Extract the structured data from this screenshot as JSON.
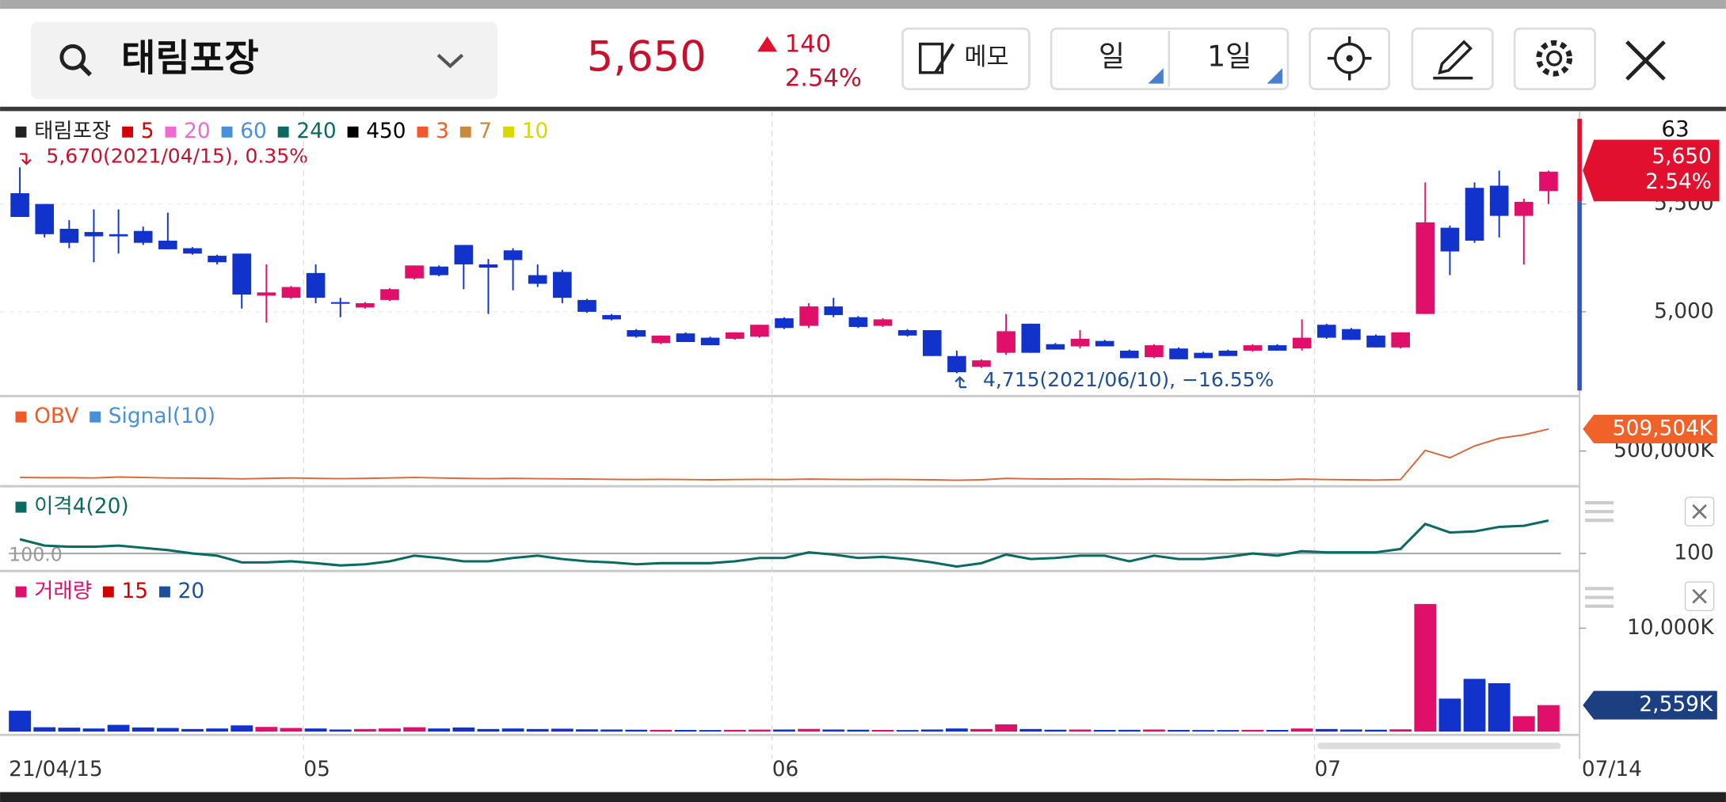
{
  "header": {
    "search": "태림포장",
    "price": "5,650",
    "change": "140",
    "change_rate": "2.54%",
    "memo": "메모",
    "period": "일",
    "interval": "1일"
  },
  "chart_data": [
    {
      "type": "candlestick",
      "legend": [
        {
          "name": "태림포장",
          "color": "#222222"
        },
        {
          "name": "5",
          "color": "#d40000"
        },
        {
          "name": "20",
          "color": "#f06ad2"
        },
        {
          "name": "60",
          "color": "#4a90d9"
        },
        {
          "name": "240",
          "color": "#0b6b63"
        },
        {
          "name": "450",
          "color": "#000000"
        },
        {
          "name": "3",
          "color": "#f05a28"
        },
        {
          "name": "7",
          "color": "#c98a3a"
        },
        {
          "name": "10",
          "color": "#d8d800"
        }
      ],
      "categories": [
        "21/04/15",
        null,
        null,
        null,
        null,
        null,
        null,
        null,
        null,
        null,
        null,
        null,
        "05",
        null,
        null,
        null,
        null,
        null,
        null,
        null,
        null,
        null,
        null,
        null,
        null,
        null,
        null,
        null,
        null,
        null,
        null,
        "06",
        null,
        null,
        null,
        null,
        null,
        null,
        null,
        null,
        null,
        null,
        null,
        null,
        null,
        null,
        null,
        null,
        null,
        null,
        null,
        null,
        null,
        "07",
        null,
        null,
        null,
        null,
        null,
        null,
        null,
        null,
        null
      ],
      "last_date": "07/14",
      "open": [
        5550,
        5500,
        5385,
        5370,
        5360,
        5375,
        5330,
        5295,
        5260,
        5270,
        5075,
        5065,
        5180,
        5045,
        5020,
        5055,
        5155,
        5210,
        5310,
        5220,
        5285,
        5170,
        5185,
        5055,
        4985,
        4915,
        4855,
        4900,
        4880,
        4875,
        4885,
        4970,
        4935,
        5025,
        4975,
        4935,
        4915,
        4915,
        4795,
        4745,
        4810,
        4945,
        4850,
        4840,
        4865,
        4820,
        4790,
        4830,
        4810,
        4820,
        4820,
        4845,
        4830,
        4940,
        4920,
        4890,
        4835,
        4990,
        5390,
        5575,
        5585,
        5445,
        5560
      ],
      "high": [
        5670,
        5500,
        5425,
        5475,
        5475,
        5395,
        5460,
        5300,
        5265,
        5270,
        5220,
        5120,
        5220,
        5065,
        5045,
        5110,
        5215,
        5215,
        5310,
        5245,
        5295,
        5220,
        5195,
        5060,
        4990,
        4920,
        4890,
        4905,
        4885,
        4905,
        4940,
        4975,
        5040,
        5065,
        4980,
        4970,
        4920,
        4915,
        4820,
        4780,
        4990,
        4945,
        4855,
        4915,
        4870,
        4825,
        4850,
        4835,
        4815,
        4825,
        4850,
        4850,
        4965,
        4945,
        4925,
        4895,
        4905,
        5600,
        5400,
        5600,
        5655,
        5525,
        5655
      ],
      "low": [
        5440,
        5345,
        5295,
        5230,
        5270,
        5310,
        5290,
        5265,
        5220,
        5015,
        4950,
        5060,
        5040,
        4975,
        5015,
        5050,
        5150,
        5165,
        5105,
        4990,
        5100,
        5115,
        5040,
        4995,
        4960,
        4880,
        4850,
        4860,
        4845,
        4870,
        4880,
        4920,
        4925,
        4975,
        4925,
        4930,
        4885,
        4795,
        4715,
        4740,
        4800,
        4810,
        4825,
        4830,
        4840,
        4785,
        4785,
        4780,
        4785,
        4795,
        4815,
        4820,
        4820,
        4875,
        4870,
        4835,
        4830,
        4990,
        5170,
        5320,
        5345,
        5220,
        5500
      ],
      "close": [
        5440,
        5360,
        5320,
        5350,
        5350,
        5320,
        5290,
        5270,
        5230,
        5080,
        5090,
        5115,
        5065,
        5040,
        5040,
        5105,
        5215,
        5170,
        5220,
        5205,
        5240,
        5130,
        5065,
        5000,
        4965,
        4885,
        4890,
        4860,
        4845,
        4905,
        4940,
        4925,
        5025,
        4985,
        4930,
        4965,
        4890,
        4795,
        4720,
        4775,
        4910,
        4810,
        4825,
        4875,
        4840,
        4785,
        4845,
        4780,
        4785,
        4795,
        4845,
        4820,
        4880,
        4880,
        4870,
        4835,
        4905,
        5415,
        5280,
        5330,
        5445,
        5510,
        5650
      ],
      "up_color": "#e0106a",
      "down_color": "#1133cc",
      "ylim": [
        4635,
        5895
      ],
      "yticks": [
        {
          "value": 5000,
          "label": "5,000"
        },
        {
          "value": 5500,
          "label": "5,500"
        }
      ],
      "annotations": [
        "5,670(2021/04/15), 0.35%",
        "4,715(2021/06/10), −16.55%"
      ],
      "count": "63",
      "badge_price": "5,650",
      "badge_rate": "2.54%"
    },
    {
      "type": "line",
      "legend": [
        {
          "name": "OBV",
          "color": "#f05a28"
        },
        {
          "name": "Signal(10)",
          "color": "#4a90d9"
        }
      ],
      "series": [
        {
          "name": "OBV",
          "color": "#d9673a",
          "values": [
            488600,
            488500,
            488500,
            488400,
            488800,
            488600,
            488400,
            488300,
            488200,
            488000,
            488200,
            488400,
            488200,
            488100,
            488200,
            488400,
            488600,
            488400,
            488200,
            488100,
            488200,
            488100,
            488000,
            487900,
            487800,
            487700,
            487800,
            487700,
            487600,
            487700,
            487800,
            487700,
            487900,
            487800,
            487700,
            487800,
            487700,
            487600,
            487400,
            487600,
            488200,
            488000,
            487900,
            488000,
            487900,
            487800,
            487900,
            487800,
            487700,
            487600,
            487700,
            487600,
            487900,
            487700,
            487600,
            487500,
            487700,
            500300,
            497100,
            502200,
            505500,
            507000,
            509504
          ]
        }
      ],
      "ylim": [
        485750,
        521375
      ],
      "yticks": [
        {
          "value": 500000,
          "label": "500,000K"
        }
      ],
      "badge": "509,504K",
      "badge_color": "#f0622a"
    },
    {
      "type": "line",
      "legend": [
        {
          "name": "이격4(20)",
          "color": "#0b6b63"
        }
      ],
      "series": [
        {
          "name": "이격4(20)",
          "color": "#0b6b63",
          "values": [
            103.8,
            102.1,
            101.8,
            101.8,
            102.1,
            101.5,
            100.9,
            100.0,
            99.4,
            97.6,
            97.6,
            97.9,
            97.4,
            96.8,
            97.1,
            97.9,
            99.4,
            98.8,
            97.9,
            97.9,
            98.8,
            99.4,
            98.5,
            97.9,
            97.6,
            97.1,
            97.4,
            97.4,
            97.4,
            97.9,
            98.8,
            98.8,
            100.3,
            99.7,
            98.8,
            99.1,
            98.5,
            97.6,
            96.5,
            97.4,
            99.7,
            98.5,
            98.8,
            99.4,
            99.4,
            97.9,
            99.4,
            98.5,
            98.5,
            99.1,
            100.0,
            99.4,
            100.6,
            100.3,
            100.3,
            100.3,
            101.2,
            107.9,
            105.6,
            105.9,
            107.1,
            107.4,
            108.8
          ]
        }
      ],
      "ylim": [
        95.9,
        116.5
      ],
      "yticks": [
        100
      ],
      "baseline_label": "100.0"
    },
    {
      "type": "bar",
      "legend": [
        {
          "name": "거래량",
          "color": "#e0106a"
        },
        {
          "name": "15",
          "color": "#d40000"
        },
        {
          "name": "20",
          "color": "#1e4f9a"
        }
      ],
      "values": [
        2020,
        420,
        380,
        300,
        650,
        400,
        350,
        250,
        300,
        600,
        450,
        350,
        300,
        200,
        250,
        300,
        420,
        300,
        400,
        250,
        300,
        250,
        280,
        220,
        200,
        180,
        170,
        160,
        150,
        170,
        190,
        200,
        260,
        200,
        180,
        160,
        150,
        200,
        300,
        250,
        700,
        250,
        180,
        200,
        160,
        170,
        200,
        160,
        150,
        150,
        170,
        160,
        300,
        250,
        200,
        180,
        220,
        12340,
        3190,
        5100,
        4680,
        1490,
        2559
      ],
      "ylim": [
        0,
        14575
      ],
      "yticks": [
        {
          "value": 10000,
          "label": "10,000K"
        }
      ],
      "badge": "2,559K",
      "badge_color": "#1b3f80"
    }
  ]
}
